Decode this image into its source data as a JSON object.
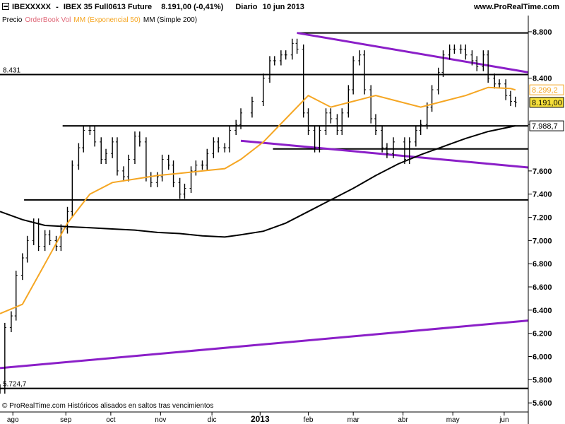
{
  "header": {
    "symbol": "IBEXXXXX",
    "separator": "-",
    "instrument": "IBEX 35 Full0613 Future",
    "last_value": "8.191,00 (-0,41%)",
    "period": "Diario",
    "date": "10 jun 2013",
    "site": "www.ProRealTime.com"
  },
  "legend": {
    "price_label": "Precio",
    "orderbook_label": "OrderBook Vol",
    "ema_label": "MM (Exponencial 50)",
    "sma_label": "MM (Simple 200)"
  },
  "footer": {
    "copyright": "© ProRealTime.com Históricos alisados en saltos tras vencimientos"
  },
  "colors": {
    "ema": "#f5a623",
    "sma": "#000000",
    "trendline": "#8b1fc8",
    "price": "#000000",
    "last_price_box": "#f7e03a"
  },
  "chart_data": {
    "type": "line",
    "title": "IBEX 35 Full0613 Future",
    "xlabel": "",
    "ylabel": "",
    "ylim": [
      5540,
      8830
    ],
    "y_ticks": [
      "8.800",
      "8.400",
      "8.000",
      "7.600",
      "7.400",
      "7.200",
      "7.000",
      "6.800",
      "6.600",
      "6.400",
      "6.200",
      "6.000",
      "5.800",
      "5.600"
    ],
    "y_tick_values": [
      8800,
      8400,
      8000,
      7600,
      7400,
      7200,
      7000,
      6800,
      6600,
      6400,
      6200,
      6000,
      5800,
      5600
    ],
    "x_tick_labels": [
      "ago",
      "sep",
      "oct",
      "nov",
      "dic",
      "2013",
      "feb",
      "mar",
      "abr",
      "may",
      "jun"
    ],
    "x_tick_dates": [
      "2012-08-01",
      "2012-09-03",
      "2012-10-01",
      "2012-11-01",
      "2012-12-03",
      "2013-01-02",
      "2013-02-01",
      "2013-03-01",
      "2013-04-01",
      "2013-05-02",
      "2013-06-03"
    ],
    "x_range_dates": [
      "2012-07-24",
      "2013-06-18"
    ],
    "series": [
      {
        "name": "Precio",
        "style": "bars",
        "dates": [
          "2012-07-24",
          "2012-07-27",
          "2012-07-31",
          "2012-08-03",
          "2012-08-07",
          "2012-08-10",
          "2012-08-14",
          "2012-08-17",
          "2012-08-21",
          "2012-08-24",
          "2012-08-28",
          "2012-08-31",
          "2012-09-04",
          "2012-09-07",
          "2012-09-11",
          "2012-09-14",
          "2012-09-18",
          "2012-09-21",
          "2012-09-25",
          "2012-09-28",
          "2012-10-02",
          "2012-10-05",
          "2012-10-09",
          "2012-10-12",
          "2012-10-16",
          "2012-10-19",
          "2012-10-23",
          "2012-10-26",
          "2012-10-30",
          "2012-11-02",
          "2012-11-06",
          "2012-11-09",
          "2012-11-13",
          "2012-11-16",
          "2012-11-20",
          "2012-11-23",
          "2012-11-27",
          "2012-11-30",
          "2012-12-04",
          "2012-12-07",
          "2012-12-11",
          "2012-12-14",
          "2012-12-18",
          "2012-12-21",
          "2012-12-28",
          "2013-01-04",
          "2013-01-08",
          "2013-01-11",
          "2013-01-15",
          "2013-01-18",
          "2013-01-22",
          "2013-01-25",
          "2013-01-29",
          "2013-02-01",
          "2013-02-05",
          "2013-02-08",
          "2013-02-12",
          "2013-02-15",
          "2013-02-19",
          "2013-02-22",
          "2013-02-26",
          "2013-03-01",
          "2013-03-05",
          "2013-03-08",
          "2013-03-12",
          "2013-03-15",
          "2013-03-19",
          "2013-03-22",
          "2013-03-26",
          "2013-04-02",
          "2013-04-05",
          "2013-04-09",
          "2013-04-12",
          "2013-04-16",
          "2013-04-19",
          "2013-04-23",
          "2013-04-26",
          "2013-04-30",
          "2013-05-03",
          "2013-05-07",
          "2013-05-10",
          "2013-05-14",
          "2013-05-17",
          "2013-05-21",
          "2013-05-24",
          "2013-05-28",
          "2013-05-31",
          "2013-06-04",
          "2013-06-07",
          "2013-06-10"
        ],
        "values": [
          5720,
          6250,
          6350,
          6700,
          6850,
          7000,
          7150,
          6950,
          7050,
          7000,
          6950,
          7100,
          7250,
          7650,
          7800,
          7950,
          7950,
          7850,
          7700,
          7750,
          7850,
          7600,
          7550,
          7700,
          7900,
          7850,
          7550,
          7500,
          7550,
          7700,
          7650,
          7500,
          7400,
          7450,
          7600,
          7650,
          7650,
          7750,
          7850,
          7800,
          7800,
          7950,
          8000,
          8100,
          8200,
          8400,
          8550,
          8550,
          8600,
          8600,
          8700,
          8650,
          8100,
          7950,
          7800,
          7950,
          8100,
          8050,
          7950,
          8100,
          8300,
          8550,
          8600,
          8300,
          8050,
          7950,
          7800,
          7750,
          7850,
          7700,
          7850,
          7950,
          8000,
          8150,
          8300,
          8450,
          8600,
          8650,
          8650,
          8650,
          8600,
          8550,
          8500,
          8600,
          8400,
          8350,
          8350,
          8250,
          8200,
          8191
        ]
      },
      {
        "name": "MM (Exponencial 50)",
        "style": "line",
        "dates": [
          "2012-07-24",
          "2012-08-07",
          "2012-08-21",
          "2012-09-04",
          "2012-09-18",
          "2012-10-02",
          "2012-10-16",
          "2012-10-30",
          "2012-11-13",
          "2012-11-27",
          "2012-12-11",
          "2012-12-21",
          "2013-01-04",
          "2013-01-18",
          "2013-02-01",
          "2013-02-15",
          "2013-03-01",
          "2013-03-15",
          "2013-03-29",
          "2013-04-12",
          "2013-04-26",
          "2013-05-10",
          "2013-05-24",
          "2013-06-07",
          "2013-06-10"
        ],
        "values": [
          6370,
          6450,
          6800,
          7150,
          7400,
          7500,
          7530,
          7560,
          7580,
          7600,
          7620,
          7700,
          7850,
          8050,
          8250,
          8150,
          8200,
          8250,
          8200,
          8150,
          8200,
          8250,
          8320,
          8310,
          8299
        ]
      },
      {
        "name": "MM (Simple 200)",
        "style": "line",
        "dates": [
          "2012-07-24",
          "2012-08-07",
          "2012-08-21",
          "2012-09-04",
          "2012-09-18",
          "2012-10-02",
          "2012-10-16",
          "2012-10-30",
          "2012-11-13",
          "2012-11-27",
          "2012-12-11",
          "2012-12-21",
          "2013-01-04",
          "2013-01-18",
          "2013-02-01",
          "2013-02-15",
          "2013-03-01",
          "2013-03-15",
          "2013-03-29",
          "2013-04-12",
          "2013-04-26",
          "2013-05-10",
          "2013-05-24",
          "2013-06-07",
          "2013-06-10"
        ],
        "values": [
          7250,
          7180,
          7130,
          7120,
          7110,
          7100,
          7090,
          7070,
          7060,
          7040,
          7030,
          7050,
          7080,
          7150,
          7250,
          7350,
          7450,
          7560,
          7660,
          7740,
          7810,
          7880,
          7940,
          7980,
          7989
        ]
      }
    ],
    "horizontal_levels": [
      {
        "label": "8.431",
        "value": 8431,
        "from": "2012-07-24",
        "to": "2013-06-18"
      },
      {
        "value": 8790,
        "from": "2013-01-25",
        "to": "2013-06-18"
      },
      {
        "value": 7988.7,
        "from": "2012-09-01",
        "to": "2013-06-18"
      },
      {
        "value": 7790,
        "from": "2013-01-10",
        "to": "2013-06-18"
      },
      {
        "value": 7350,
        "from": "2012-08-08",
        "to": "2013-06-18"
      },
      {
        "label": "5.724,7",
        "value": 5724.7,
        "from": "2012-07-24",
        "to": "2013-06-18"
      }
    ],
    "trendlines": [
      {
        "from_date": "2013-01-25",
        "from_value": 8790,
        "to_date": "2013-06-18",
        "to_value": 8450
      },
      {
        "from_date": "2012-12-21",
        "from_value": 7860,
        "to_date": "2013-06-18",
        "to_value": 7630
      },
      {
        "from_date": "2012-07-24",
        "from_value": 5900,
        "to_date": "2013-06-18",
        "to_value": 6310
      }
    ],
    "axis_boxes": [
      {
        "text": "8.299,2",
        "value": 8299.2,
        "style": "ema"
      },
      {
        "text": "8.191,00",
        "value": 8191,
        "style": "price"
      },
      {
        "text": "7.988,7",
        "value": 7988.7,
        "style": "plain"
      }
    ],
    "grid": false,
    "legend_position": "top-left"
  }
}
